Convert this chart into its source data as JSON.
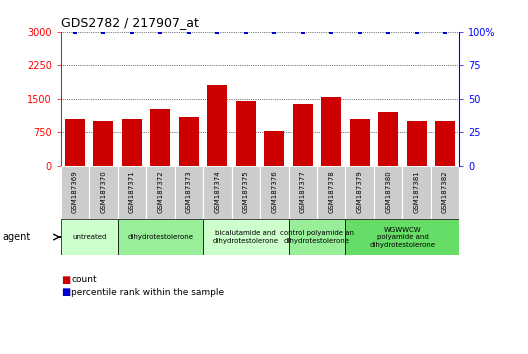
{
  "title": "GDS2782 / 217907_at",
  "samples": [
    "GSM187369",
    "GSM187370",
    "GSM187371",
    "GSM187372",
    "GSM187373",
    "GSM187374",
    "GSM187375",
    "GSM187376",
    "GSM187377",
    "GSM187378",
    "GSM187379",
    "GSM187380",
    "GSM187381",
    "GSM187382"
  ],
  "counts": [
    1050,
    1000,
    1050,
    1280,
    1100,
    1800,
    1450,
    780,
    1380,
    1530,
    1050,
    1200,
    1000,
    1000
  ],
  "percentiles": [
    100,
    100,
    100,
    100,
    100,
    100,
    100,
    100,
    100,
    100,
    100,
    100,
    100,
    100
  ],
  "ylim_left": [
    0,
    3000
  ],
  "ylim_right": [
    0,
    100
  ],
  "yticks_left": [
    0,
    750,
    1500,
    2250,
    3000
  ],
  "yticks_right": [
    0,
    25,
    50,
    75,
    100
  ],
  "bar_color": "#cc0000",
  "dot_color": "#0000cc",
  "groups": [
    {
      "label": "untreated",
      "indices": [
        0,
        1
      ],
      "color": "#ccffcc"
    },
    {
      "label": "dihydrotestolerone",
      "indices": [
        2,
        3,
        4
      ],
      "color": "#99ee99"
    },
    {
      "label": "bicalutamide and\ndihydrotestolerone",
      "indices": [
        5,
        6,
        7
      ],
      "color": "#ccffcc"
    },
    {
      "label": "control polyamide an\ndihydrotestolerone",
      "indices": [
        8,
        9
      ],
      "color": "#99ee99"
    },
    {
      "label": "WGWWCW\npolyamide and\ndihydrotestolerone",
      "indices": [
        10,
        11,
        12,
        13
      ],
      "color": "#66dd66"
    }
  ],
  "background_color": "#ffffff",
  "sample_bg_color": "#cccccc",
  "legend_count_color": "#cc0000",
  "legend_pct_color": "#0000cc"
}
